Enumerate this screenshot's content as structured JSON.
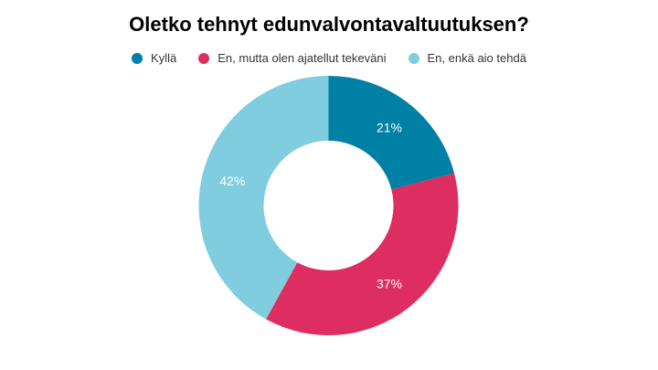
{
  "chart_data": {
    "type": "pie",
    "subtype": "donut",
    "title": "Oletko tehnyt edunvalvontavaltuutuksen?",
    "categories": [
      "Kyllä",
      "En, mutta olen ajatellut tekeväni",
      "En, enkä aio tehdä"
    ],
    "values": [
      21,
      37,
      42
    ],
    "value_labels": [
      "21%",
      "37%",
      "42%"
    ],
    "colors": [
      "#0180A5",
      "#DE2D61",
      "#80CDE0"
    ],
    "legend_position": "top",
    "xlabel": "",
    "ylabel": ""
  },
  "chart": {
    "title": "Oletko tehnyt edunvalvontavaltuutuksen?",
    "legend": [
      {
        "label": "Kyllä",
        "color": "#0180A5"
      },
      {
        "label": "En, mutta olen ajatellut tekeväni",
        "color": "#DE2D61"
      },
      {
        "label": "En, enkä aio tehdä",
        "color": "#80CDE0"
      }
    ],
    "slices": [
      {
        "label": "21%",
        "value": 21,
        "color": "#0180A5"
      },
      {
        "label": "37%",
        "value": 37,
        "color": "#DE2D61"
      },
      {
        "label": "42%",
        "value": 42,
        "color": "#80CDE0"
      }
    ]
  }
}
